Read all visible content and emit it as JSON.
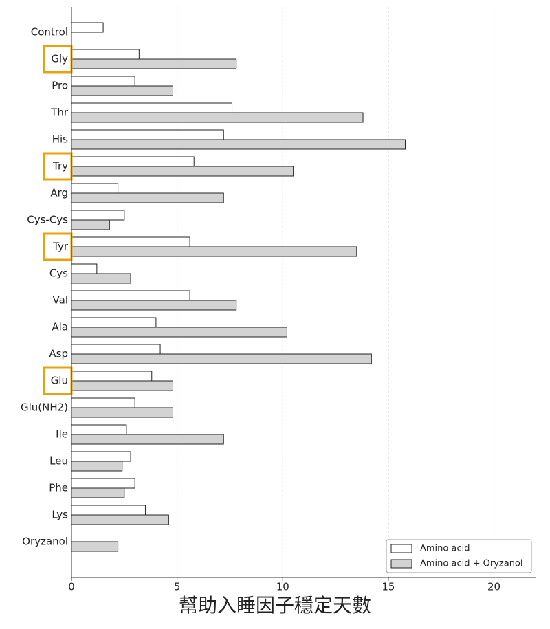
{
  "chart_data": {
    "type": "bar",
    "orientation": "horizontal",
    "xlabel": "幫助入睡因子穩定天數",
    "categories": [
      "Control",
      "Gly",
      "Pro",
      "Thr",
      "His",
      "Try",
      "Arg",
      "Cys-Cys",
      "Tyr",
      "Cys",
      "Val",
      "Ala",
      "Asp",
      "Glu",
      "Glu(NH2)",
      "Ile",
      "Leu",
      "Phe",
      "Lys",
      "Oryzanol"
    ],
    "series": [
      {
        "name": "Amino acid",
        "color": "#ffffff",
        "values": [
          1.5,
          3.2,
          3.0,
          7.6,
          7.2,
          5.8,
          2.2,
          2.5,
          5.6,
          1.2,
          5.6,
          4.0,
          4.2,
          3.8,
          3.0,
          2.6,
          2.8,
          3.0,
          3.5,
          null
        ]
      },
      {
        "name": "Amino acid + Oryzanol",
        "color": "#d3d3d3",
        "values": [
          null,
          7.8,
          4.8,
          13.8,
          15.8,
          10.5,
          7.2,
          1.8,
          13.5,
          2.8,
          7.8,
          10.2,
          14.2,
          4.8,
          4.8,
          7.2,
          2.4,
          2.5,
          4.6,
          2.2
        ]
      }
    ],
    "highlight_indices": [
      1,
      5,
      8,
      13
    ],
    "highlight_color": "#e8a20c",
    "xlim": [
      0,
      22
    ],
    "xticks": [
      0,
      5,
      10,
      15,
      20
    ],
    "grid": true,
    "legend": "lower right"
  }
}
